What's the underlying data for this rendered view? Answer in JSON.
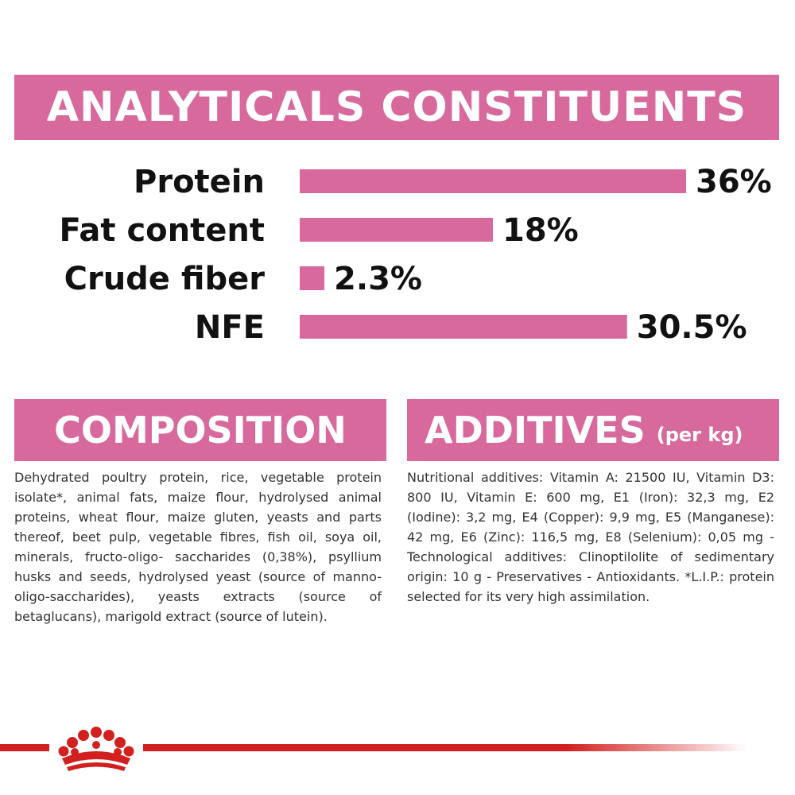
{
  "header": {
    "title": "ANALYTICALS CONSTITUENTS"
  },
  "chart_data": {
    "type": "bar",
    "orientation": "horizontal",
    "title": "ANALYTICALS CONSTITUENTS",
    "categories": [
      "Protein",
      "Fat content",
      "Crude fiber",
      "NFE"
    ],
    "values": [
      36,
      18,
      2.3,
      30.5
    ],
    "value_labels": [
      "36%",
      "18%",
      "2.3%",
      "30.5%"
    ],
    "unit": "%",
    "bar_color": "#d8699d",
    "grid": false,
    "legend": "none"
  },
  "composition": {
    "title": "COMPOSITION",
    "text": "Dehydrated poultry protein, rice, vegetable protein isolate*, animal fats, maize flour, hydrolysed animal proteins, wheat flour, maize gluten, yeasts and parts thereof, beet pulp, vegetable fibres, fish oil, soya oil, minerals, fructo-oligo- saccharides (0,38%), psyllium husks and seeds, hydrolysed yeast (source of manno-oligo-saccharides), yeasts extracts (source of betaglucans), marigold extract (source of lutein)."
  },
  "additives": {
    "title": "ADDITIVES",
    "subtitle": "(per kg)",
    "text": "Nutritional additives: Vitamin A: 21500 IU, Vitamin D3: 800 IU, Vitamin E: 600 mg, E1 (Iron): 32,3 mg, E2 (Iodine): 3,2 mg, E4 (Copper): 9,9 mg, E5 (Manganese): 42 mg, E6 (Zinc): 116,5 mg, E8 (Selenium): 0,05 mg - Technological additives: Clinoptilolite of sedimentary origin: 10 g - Preservatives - Antioxidants. *L.I.P.: protein selected for its very high assimilation."
  },
  "footer": {
    "logo_icon": "crown-icon",
    "accent_color": "#d2201e"
  }
}
